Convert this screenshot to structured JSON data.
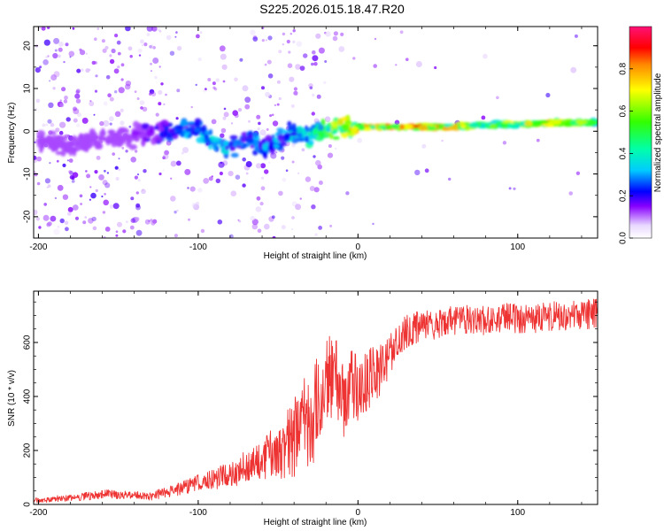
{
  "title": "S225.2026.015.18.47.R20",
  "colors": {
    "snr_line": "#ee3333",
    "ridge_low": "#6600ff",
    "ridge_mid": "#00ffcc",
    "ridge_high": "#ff2200"
  },
  "chart_data": [
    {
      "id": "spectrogram",
      "type": "heatmap",
      "xlabel": "Height of straight line (km)",
      "ylabel": "Frequency (Hz)",
      "xlim": [
        -203,
        150
      ],
      "ylim": [
        -25,
        24.5
      ],
      "xticks": [
        -200,
        -100,
        0,
        100
      ],
      "xtick_labels": [
        "-200",
        "-100",
        "0",
        "100"
      ],
      "yticks": [
        -20,
        -10,
        0,
        10,
        20
      ],
      "ytick_labels": [
        "-20",
        "-10",
        "0",
        "10",
        "20"
      ],
      "colorbar": {
        "label": "Normalized spectral amplitude",
        "range": [
          0,
          1
        ],
        "ticks": [
          0.0,
          0.2,
          0.4,
          0.6,
          0.8
        ],
        "tick_labels": [
          "0.0",
          "0.2",
          "0.4",
          "0.6",
          "0.8"
        ],
        "colormap": "rainbow"
      },
      "ridge": {
        "x": [
          -200,
          -180,
          -160,
          -140,
          -120,
          -100,
          -90,
          -80,
          -70,
          -60,
          -50,
          -40,
          -30,
          -20,
          -10,
          0,
          10,
          20,
          40,
          60,
          80,
          100,
          120,
          150
        ],
        "freq": [
          -2,
          -3,
          -2,
          -1,
          0,
          0,
          -3,
          -4,
          -2,
          -4,
          -2,
          0,
          -1,
          0,
          1,
          1,
          1,
          1,
          1,
          1,
          1.5,
          1.5,
          2,
          2
        ],
        "amplitude": [
          0.08,
          0.12,
          0.1,
          0.12,
          0.25,
          0.3,
          0.35,
          0.3,
          0.28,
          0.3,
          0.3,
          0.35,
          0.4,
          0.55,
          0.65,
          0.7,
          0.75,
          0.8,
          0.8,
          0.7,
          0.6,
          0.65,
          0.75,
          0.5
        ]
      },
      "noise_density": {
        "x": [
          -200,
          -150,
          -100,
          -50,
          -20,
          0,
          150
        ],
        "level": [
          0.9,
          0.7,
          0.45,
          0.5,
          0.3,
          0.05,
          0.02
        ]
      }
    },
    {
      "id": "snr",
      "type": "line",
      "xlabel": "Height of straight line (km)",
      "ylabel": "SNR (10 * v/v)",
      "xlim": [
        -203,
        150
      ],
      "ylim": [
        0,
        790
      ],
      "xticks": [
        -200,
        -100,
        0,
        100
      ],
      "xtick_labels": [
        "-200",
        "-100",
        "0",
        "100"
      ],
      "yticks": [
        0,
        200,
        400,
        600
      ],
      "ytick_labels": [
        "0",
        "200",
        "400",
        "600"
      ],
      "series": [
        {
          "name": "SNR",
          "x": [
            -203,
            -190,
            -180,
            -170,
            -160,
            -150,
            -140,
            -130,
            -120,
            -110,
            -100,
            -90,
            -80,
            -70,
            -60,
            -50,
            -40,
            -35,
            -30,
            -25,
            -20,
            -15,
            -10,
            -5,
            0,
            5,
            10,
            15,
            20,
            25,
            30,
            40,
            50,
            60,
            70,
            80,
            90,
            100,
            110,
            120,
            130,
            140,
            150
          ],
          "y": [
            15,
            20,
            25,
            30,
            40,
            35,
            35,
            30,
            45,
            60,
            80,
            95,
            110,
            140,
            170,
            200,
            250,
            320,
            300,
            380,
            440,
            500,
            380,
            450,
            420,
            450,
            480,
            500,
            560,
            610,
            640,
            660,
            670,
            680,
            690,
            680,
            690,
            690,
            690,
            695,
            700,
            700,
            710
          ],
          "spread": [
            10,
            12,
            12,
            15,
            18,
            15,
            15,
            15,
            20,
            25,
            30,
            40,
            50,
            60,
            80,
            110,
            150,
            170,
            170,
            200,
            160,
            160,
            150,
            130,
            130,
            120,
            110,
            100,
            80,
            70,
            60,
            60,
            55,
            55,
            55,
            55,
            55,
            55,
            55,
            55,
            55,
            55,
            55
          ]
        }
      ]
    }
  ]
}
